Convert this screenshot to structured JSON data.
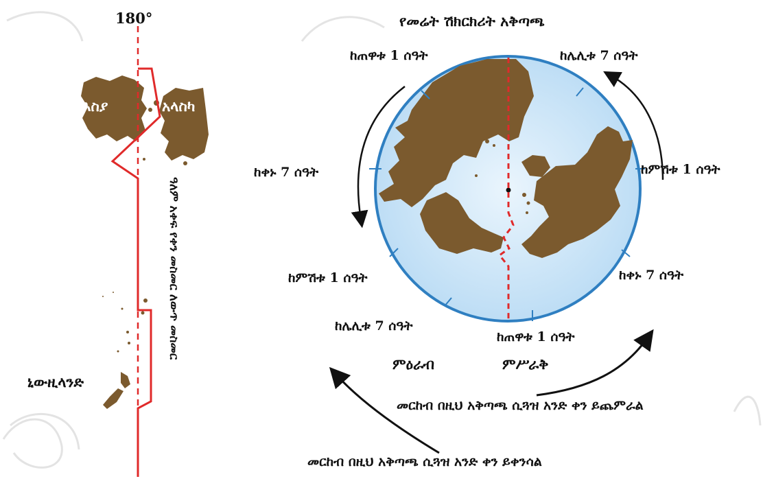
{
  "left_panel": {
    "meridian_label": "180°",
    "asia_label": "እስያ",
    "alaska_label": "አላስካ",
    "new_zealand_label": "ኒውዚላንድ",
    "dateline_label": "ዓለም አቀፍ የቀን መስመር ለውጥ መስመር"
  },
  "right_panel": {
    "title": "የመሬት ሽክርክሪት አቅጣጫ",
    "hours": {
      "top_left": "ከጠዋቱ 1 ሰዓት",
      "top_right": "ከሌሊቱ 7 ሰዓት",
      "mid_left": "ከቀኑ 7 ሰዓት",
      "mid_right": "ከምሽቱ 1 ሰዓት",
      "lower_left": "ከምሽቱ 1 ሰዓት",
      "lower_right": "ከቀኑ 7 ሰዓት",
      "bottom_left": "ከሌሊቱ 7 ሰዓት",
      "bottom_right": "ከጠዋቱ 1 ሰዓት"
    },
    "west_label": "ምዕራብ",
    "east_label": "ምሥራቅ",
    "note_gain_day": "መርከብ በዚህ አቅጣጫ ሲጓዝ አንድ ቀን ይጨምራል",
    "note_lose_day": "መርከብ በዚህ አቅጣጫ ሲጓዝ አንድ ቀን ይቀንሳል"
  },
  "colors": {
    "land": "#7b5a2e",
    "dateline": "#e02a2a",
    "ocean_edge": "#2f7fc1",
    "ocean_fill": "#cfe6f7"
  }
}
